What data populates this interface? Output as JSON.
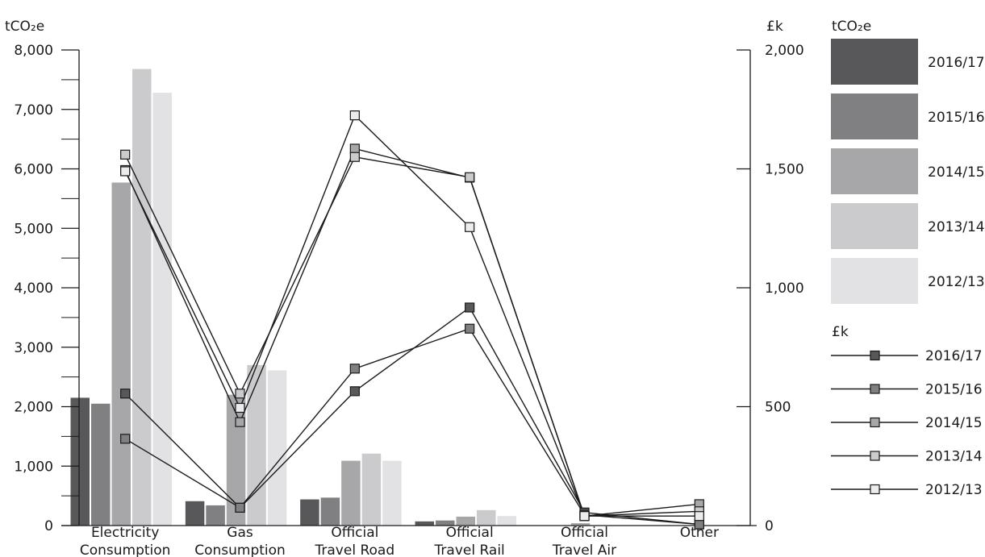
{
  "chart_data": {
    "type": "bar",
    "y_left_label": "tCO₂e",
    "y_right_label": "£k",
    "y_left_ticks": [
      "0",
      "1,000",
      "2,000",
      "3,000",
      "4,000",
      "5,000",
      "6,000",
      "7,000",
      "8,000"
    ],
    "y_right_ticks": [
      "0",
      "500",
      "1,000",
      "1,500",
      "2,000"
    ],
    "ylim_left": [
      0,
      8000
    ],
    "ylim_right": [
      0,
      2000
    ],
    "categories": [
      [
        "Electricity",
        "Consumption"
      ],
      [
        "Gas",
        "Consumption"
      ],
      [
        "Official",
        "Travel Road"
      ],
      [
        "Official",
        "Travel Rail"
      ],
      [
        "Official",
        "Travel Air"
      ],
      [
        "Other"
      ]
    ],
    "legend_bars_title": "tCO₂e",
    "legend_lines_title": "£k",
    "bar_series": [
      {
        "name": "2016/17",
        "color": "#58585a",
        "values": [
          2150,
          410,
          440,
          70,
          0,
          0
        ]
      },
      {
        "name": "2015/16",
        "color": "#808083",
        "values": [
          2050,
          340,
          470,
          85,
          0,
          0
        ]
      },
      {
        "name": "2014/15",
        "color": "#a7a7aa",
        "values": [
          5770,
          2200,
          1090,
          150,
          40,
          0
        ]
      },
      {
        "name": "2013/14",
        "color": "#cbcbcd",
        "values": [
          7680,
          2700,
          1210,
          260,
          0,
          0
        ]
      },
      {
        "name": "2012/13",
        "color": "#e2e2e4",
        "values": [
          7280,
          2610,
          1090,
          160,
          0,
          0
        ]
      }
    ],
    "line_series": [
      {
        "name": "2016/17",
        "marker": "#58585a",
        "values": [
          555,
          75,
          565,
          917,
          55,
          5
        ]
      },
      {
        "name": "2015/16",
        "marker": "#808083",
        "values": [
          365,
          75,
          660,
          828,
          45,
          5
        ]
      },
      {
        "name": "2014/15",
        "marker": "#a7a7aa",
        "values": [
          1495,
          435,
          1585,
          1463,
          40,
          90
        ]
      },
      {
        "name": "2013/14",
        "marker": "#cbcbcd",
        "values": [
          1560,
          555,
          1550,
          1465,
          40,
          60
        ]
      },
      {
        "name": "2012/13",
        "marker": "#ececee",
        "values": [
          1490,
          495,
          1725,
          1255,
          40,
          40
        ]
      }
    ]
  }
}
